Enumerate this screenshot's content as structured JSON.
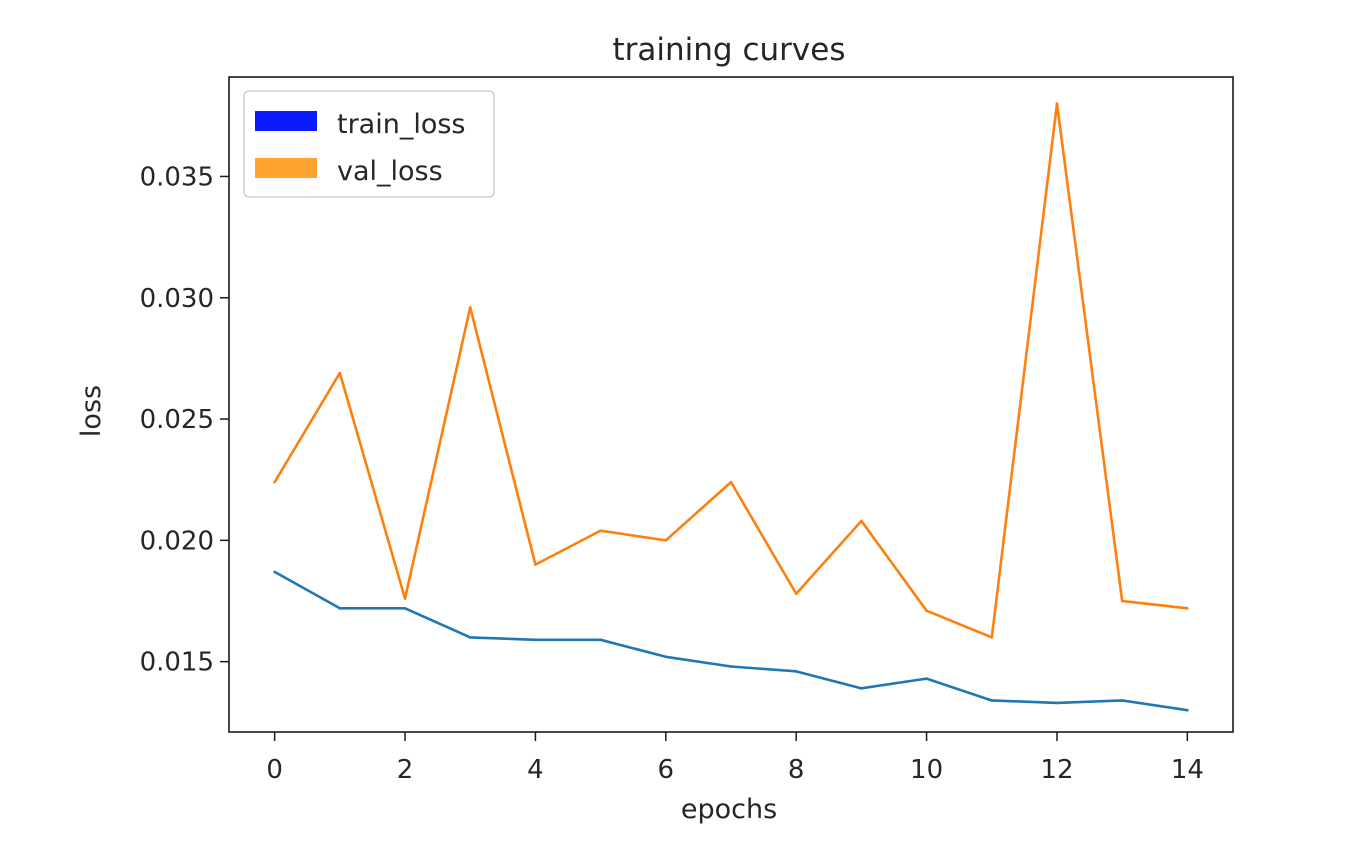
{
  "chart_data": {
    "type": "line",
    "title": "training curves",
    "xlabel": "epochs",
    "ylabel": "loss",
    "x": [
      0,
      1,
      2,
      3,
      4,
      5,
      6,
      7,
      8,
      9,
      10,
      11,
      12,
      13,
      14
    ],
    "xlim": [
      -0.7,
      14.7
    ],
    "ylim": [
      0.0121,
      0.0391
    ],
    "xticks": [
      0,
      2,
      4,
      6,
      8,
      10,
      12,
      14
    ],
    "xtick_labels": [
      "0",
      "2",
      "4",
      "6",
      "8",
      "10",
      "12",
      "14"
    ],
    "yticks": [
      0.015,
      0.02,
      0.025,
      0.03,
      0.035
    ],
    "ytick_labels": [
      "0.015",
      "0.020",
      "0.025",
      "0.030",
      "0.035"
    ],
    "grid": false,
    "legend_position": "upper-left",
    "series": [
      {
        "name": "train_loss",
        "color": "#1f77b4",
        "legend_color": "#0a1cff",
        "values": [
          0.0187,
          0.0172,
          0.0172,
          0.016,
          0.0159,
          0.0159,
          0.0152,
          0.0148,
          0.0146,
          0.0139,
          0.0143,
          0.0134,
          0.0133,
          0.0134,
          0.013
        ]
      },
      {
        "name": "val_loss",
        "color": "#ff7f0e",
        "legend_color": "#ffa230",
        "values": [
          0.0224,
          0.0269,
          0.0176,
          0.0296,
          0.019,
          0.0204,
          0.02,
          0.0224,
          0.0178,
          0.0208,
          0.0171,
          0.016,
          0.038,
          0.0175,
          0.0172
        ]
      }
    ]
  }
}
